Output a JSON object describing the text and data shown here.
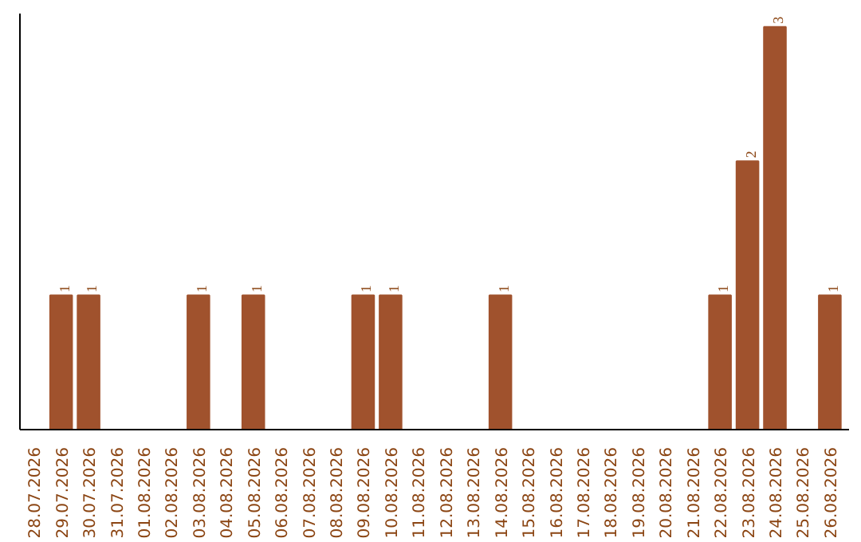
{
  "chart_data": {
    "type": "bar",
    "categories": [
      "28.07.2026",
      "29.07.2026",
      "30.07.2026",
      "31.07.2026",
      "01.08.2026",
      "02.08.2026",
      "03.08.2026",
      "04.08.2026",
      "05.08.2026",
      "06.08.2026",
      "07.08.2026",
      "08.08.2026",
      "09.08.2026",
      "10.08.2026",
      "11.08.2026",
      "12.08.2026",
      "13.08.2026",
      "14.08.2026",
      "15.08.2026",
      "16.08.2026",
      "17.08.2026",
      "18.08.2026",
      "19.08.2026",
      "20.08.2026",
      "21.08.2026",
      "22.08.2026",
      "23.08.2026",
      "24.08.2026",
      "25.08.2026",
      "26.08.2026"
    ],
    "values": [
      0,
      1,
      1,
      0,
      0,
      0,
      1,
      0,
      1,
      0,
      0,
      0,
      1,
      1,
      0,
      0,
      0,
      1,
      0,
      0,
      0,
      0,
      0,
      0,
      0,
      1,
      2,
      3,
      0,
      1
    ],
    "value_labels": [
      null,
      "1",
      "1",
      null,
      null,
      null,
      "1",
      null,
      "1",
      null,
      null,
      null,
      "1",
      "1",
      null,
      null,
      null,
      "1",
      null,
      null,
      null,
      null,
      null,
      null,
      null,
      "1",
      "2",
      "3",
      null,
      "1"
    ],
    "color": "#a0522d",
    "ylim": [
      0,
      3.1
    ],
    "tick_labels": "x",
    "grid": false
  }
}
